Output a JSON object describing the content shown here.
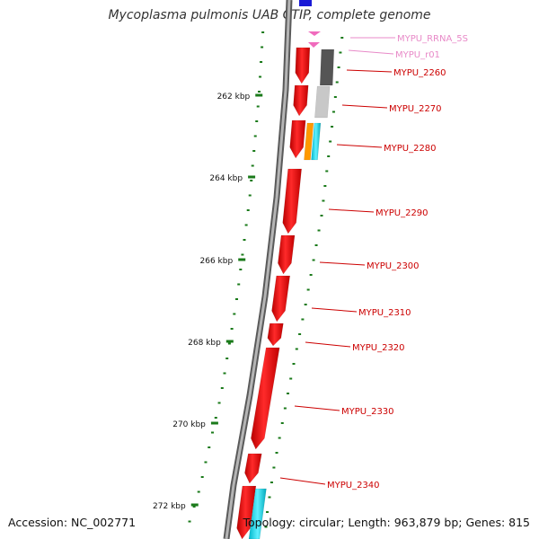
{
  "title": "Mycoplasma pulmonis UAB CTIP, complete genome",
  "footer": {
    "accession": "Accession: NC_002771",
    "stats": "Topology: circular; Length: 963,879 bp; Genes: 815"
  },
  "colors": {
    "backbone": "#888888",
    "tick": "#1a7a1a",
    "gene": "#ee1111",
    "gene_label": "#cc0000",
    "rna_label": "#e88ac8",
    "rrna": "#f06bbd",
    "gray_dark": "#555555",
    "gray_light": "#c8c8c8",
    "orange": "#ff9900",
    "cyan": "#22cfe0",
    "blue": "#1a1ad6"
  },
  "scale_labels": [
    "262 kbp",
    "264 kbp",
    "266 kbp",
    "268 kbp",
    "270 kbp",
    "272 kbp"
  ],
  "gene_labels": [
    {
      "name": "MYPU_RRNA_5S",
      "kind": "rna"
    },
    {
      "name": "MYPU_r01",
      "kind": "rna"
    },
    {
      "name": "MYPU_2260",
      "kind": "cds"
    },
    {
      "name": "MYPU_2270",
      "kind": "cds"
    },
    {
      "name": "MYPU_2280",
      "kind": "cds"
    },
    {
      "name": "MYPU_2290",
      "kind": "cds"
    },
    {
      "name": "MYPU_2300",
      "kind": "cds"
    },
    {
      "name": "MYPU_2310",
      "kind": "cds"
    },
    {
      "name": "MYPU_2320",
      "kind": "cds"
    },
    {
      "name": "MYPU_2330",
      "kind": "cds"
    },
    {
      "name": "MYPU_2340",
      "kind": "cds"
    }
  ]
}
